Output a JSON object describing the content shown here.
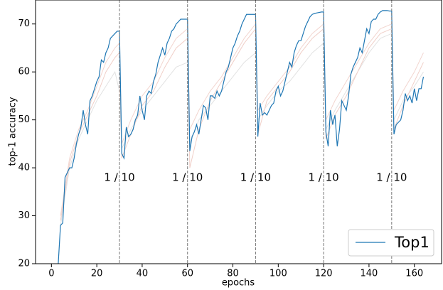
{
  "chart_data": {
    "type": "line",
    "xlabel": "epochs",
    "ylabel": "top-1 accuracy",
    "xlim": [
      -7,
      172
    ],
    "ylim": [
      20,
      75
    ],
    "xticks": [
      0,
      20,
      40,
      60,
      80,
      100,
      120,
      140,
      160
    ],
    "yticks": [
      20,
      30,
      40,
      50,
      60,
      70
    ],
    "legend": "lower right",
    "annotations": [
      {
        "x": 30,
        "text": "1 / 10"
      },
      {
        "x": 60,
        "text": "1 / 10"
      },
      {
        "x": 90,
        "text": "1 / 10"
      },
      {
        "x": 120,
        "text": "1 / 10"
      },
      {
        "x": 150,
        "text": "1 / 10"
      }
    ],
    "series": [
      {
        "color": "#f2d5cf",
        "x": [
          4,
          8,
          12,
          16,
          20,
          24,
          28,
          30,
          31,
          35,
          40,
          45,
          50,
          55,
          60,
          61,
          65,
          70,
          75,
          80,
          85,
          90,
          91,
          95,
          100,
          105,
          110,
          115,
          120,
          121,
          125,
          130,
          135,
          140,
          145,
          150,
          151,
          155,
          160,
          164
        ],
        "values": [
          30,
          42,
          48,
          52,
          57,
          62,
          65,
          66,
          45,
          50,
          55,
          58,
          63,
          67,
          69,
          48,
          52,
          56,
          59,
          63,
          67,
          70,
          52,
          55,
          58,
          61,
          65,
          68,
          70,
          50,
          54,
          58,
          62,
          66,
          69,
          70,
          52,
          56,
          60,
          64
        ]
      },
      {
        "color": "#e2e2e2",
        "x": [
          4,
          8,
          12,
          16,
          20,
          24,
          28,
          30,
          31,
          35,
          40,
          45,
          50,
          55,
          60,
          61,
          65,
          70,
          75,
          80,
          85,
          90,
          91,
          95,
          100,
          105,
          110,
          115,
          120,
          121,
          125,
          130,
          135,
          140,
          145,
          150,
          151,
          155,
          160,
          164
        ],
        "values": [
          28,
          40,
          46,
          50,
          54,
          57,
          60,
          56,
          44,
          48,
          52,
          55,
          58,
          61,
          62,
          45,
          50,
          53,
          56,
          59,
          62,
          64,
          50,
          53,
          56,
          58,
          61,
          64,
          66,
          48,
          52,
          56,
          60,
          64,
          67,
          68,
          50,
          54,
          57,
          60
        ]
      },
      {
        "color": "#f0cfc8",
        "x": [
          4,
          8,
          12,
          16,
          20,
          24,
          28,
          30,
          31,
          35,
          40,
          45,
          50,
          55,
          60,
          61,
          65,
          70,
          75,
          80,
          85,
          90,
          91,
          95,
          100,
          105,
          110,
          115,
          120,
          121,
          125,
          130,
          135,
          140,
          145,
          150,
          151,
          155,
          160,
          164
        ],
        "values": [
          29,
          41,
          47,
          51,
          55,
          60,
          63,
          64,
          42,
          47,
          53,
          56,
          61,
          65,
          67,
          40,
          48,
          54,
          58,
          62,
          66,
          69,
          47,
          54,
          57,
          60,
          64,
          67,
          69,
          46,
          51,
          55,
          60,
          65,
          68,
          69,
          48,
          53,
          58,
          62
        ]
      },
      {
        "name": "Top1",
        "color": "#1f77b4",
        "x": [
          3,
          4,
          5,
          6,
          7,
          8,
          9,
          10,
          11,
          12,
          13,
          14,
          15,
          16,
          17,
          18,
          19,
          20,
          21,
          22,
          23,
          24,
          25,
          26,
          27,
          28,
          29,
          30,
          31,
          32,
          33,
          34,
          35,
          36,
          37,
          38,
          39,
          40,
          41,
          42,
          43,
          44,
          45,
          46,
          47,
          48,
          49,
          50,
          51,
          52,
          53,
          54,
          55,
          56,
          57,
          58,
          59,
          60,
          61,
          62,
          63,
          64,
          65,
          66,
          67,
          68,
          69,
          70,
          71,
          72,
          73,
          74,
          75,
          76,
          77,
          78,
          79,
          80,
          81,
          82,
          83,
          84,
          85,
          86,
          87,
          88,
          89,
          90,
          91,
          92,
          93,
          94,
          95,
          96,
          97,
          98,
          99,
          100,
          101,
          102,
          103,
          104,
          105,
          106,
          107,
          108,
          109,
          110,
          111,
          112,
          113,
          114,
          115,
          116,
          117,
          118,
          119,
          120,
          121,
          122,
          123,
          124,
          125,
          126,
          127,
          128,
          129,
          130,
          131,
          132,
          133,
          134,
          135,
          136,
          137,
          138,
          139,
          140,
          141,
          142,
          143,
          144,
          145,
          146,
          147,
          148,
          149,
          150,
          151,
          152,
          153,
          154,
          155,
          156,
          157,
          158,
          159,
          160,
          161,
          162,
          163,
          164
        ],
        "values": [
          20,
          28,
          28.5,
          38,
          39,
          40,
          40,
          42,
          45,
          47,
          48.5,
          52,
          49,
          47,
          54,
          55,
          56.5,
          58,
          59,
          62.5,
          62,
          64,
          65,
          67,
          67.5,
          68,
          68.5,
          68.5,
          43,
          42,
          48.5,
          46.5,
          47,
          48,
          50,
          51,
          55,
          52,
          50,
          55,
          56,
          55.5,
          58,
          59.5,
          62,
          63.5,
          65,
          63.5,
          66,
          67,
          68.5,
          69,
          70,
          70.5,
          71,
          71,
          71,
          71,
          43.5,
          46.5,
          47.5,
          49,
          47,
          50,
          53,
          52.5,
          50,
          55,
          55,
          54.5,
          56,
          55,
          56,
          58,
          60,
          61,
          63,
          65,
          66,
          67.5,
          68.5,
          70,
          71,
          72,
          72,
          72,
          72,
          72,
          46.5,
          53.5,
          51,
          51.5,
          51,
          52,
          53,
          53.5,
          56,
          57,
          55,
          56,
          58,
          60,
          62,
          61,
          64,
          65.5,
          66.5,
          66.5,
          68,
          69.5,
          70.5,
          71.5,
          72,
          72.2,
          72.3,
          72.4,
          72.5,
          72.5,
          47.5,
          44.5,
          52,
          49,
          51,
          44.5,
          48,
          54,
          53,
          52,
          55,
          59.5,
          61,
          62,
          63,
          65,
          64,
          66.5,
          69,
          68,
          70.5,
          71,
          71,
          72,
          72.5,
          72.8,
          72.8,
          72.8,
          72.7,
          72.7,
          47,
          49,
          49.5,
          50,
          52,
          55.5,
          54,
          55,
          53.5,
          56.5,
          54,
          56.5,
          56.5,
          59
        ]
      }
    ]
  }
}
